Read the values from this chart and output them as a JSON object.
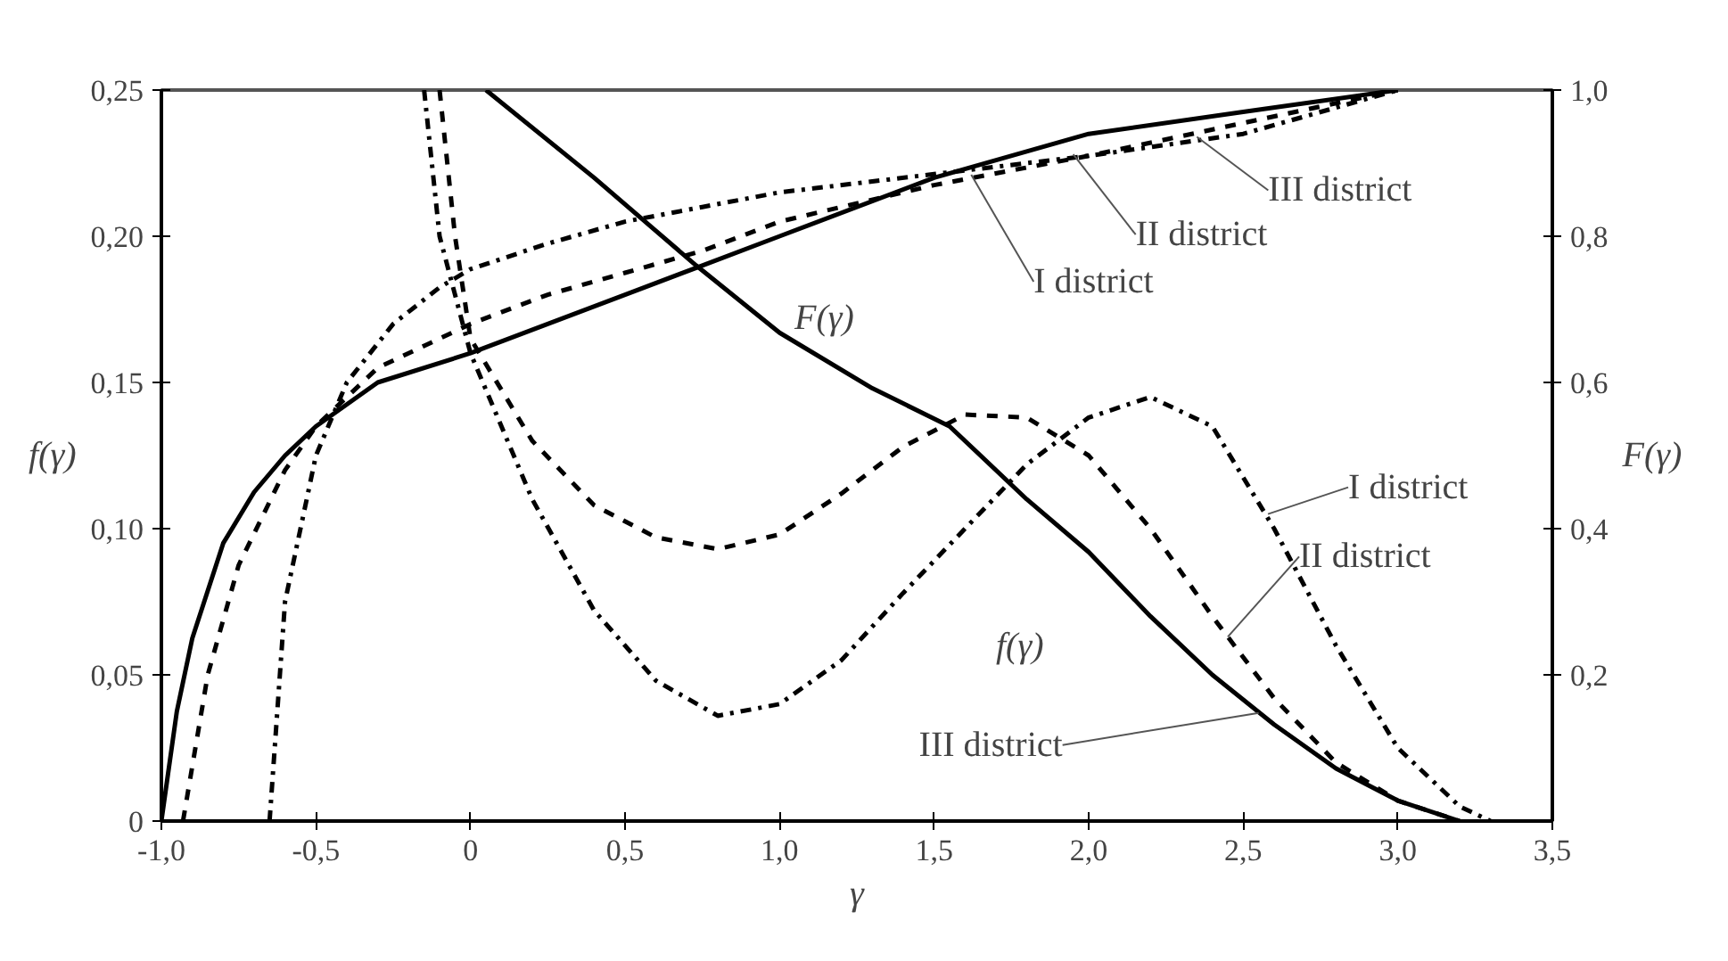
{
  "chart_data": {
    "type": "line",
    "xlabel": "γ",
    "ylabel": "f(γ)",
    "y2label": "F(γ)",
    "xlim": [
      -1.0,
      3.5
    ],
    "xticks": [
      {
        "value": -1.0,
        "label": "-1,0"
      },
      {
        "value": -0.5,
        "label": "-0,5"
      },
      0,
      {
        "value": 0.5,
        "label": "0,5"
      },
      {
        "value": 1.0,
        "label": "1,0"
      },
      {
        "value": 1.5,
        "label": "1,5"
      },
      {
        "value": 2.0,
        "label": "2,0"
      },
      {
        "value": 2.5,
        "label": "2,5"
      },
      {
        "value": 3.0,
        "label": "3,0"
      },
      {
        "value": 3.5,
        "label": "3,5"
      }
    ],
    "ylim": [
      0,
      0.25
    ],
    "yticks": [
      0,
      {
        "value": 0.05,
        "label": "0,05"
      },
      {
        "value": 0.1,
        "label": "0,10"
      },
      {
        "value": 0.15,
        "label": "0,15"
      },
      {
        "value": 0.2,
        "label": "0,20"
      },
      {
        "value": 0.25,
        "label": "0,25"
      }
    ],
    "y2lim": [
      0,
      1.0
    ],
    "y2ticks": [
      {
        "value": 0.2,
        "label": "0,2"
      },
      {
        "value": 0.4,
        "label": "0,4"
      },
      {
        "value": 0.6,
        "label": "0,6"
      },
      {
        "value": 0.8,
        "label": "0,8"
      },
      {
        "value": 1.0,
        "label": "1,0"
      }
    ],
    "grid": false,
    "marker": "none",
    "series": [
      {
        "color": "#000000",
        "line_style": "dashdot",
        "x": [
          -0.15,
          -0.1,
          0,
          0.2,
          0.4,
          0.6,
          0.8,
          1.0,
          1.2,
          1.4,
          1.6,
          1.8,
          2.0,
          2.2,
          2.4,
          2.6,
          2.8,
          3.0,
          3.2,
          3.3
        ],
        "values": [
          0.25,
          0.2,
          0.16,
          0.11,
          0.072,
          0.048,
          0.036,
          0.04,
          0.055,
          0.078,
          0.1,
          0.122,
          0.138,
          0.145,
          0.135,
          0.1,
          0.06,
          0.025,
          0.005,
          0
        ]
      },
      {
        "color": "#000000",
        "line_style": "dashed",
        "x": [
          -0.1,
          -0.05,
          0,
          0.2,
          0.4,
          0.6,
          0.8,
          1.0,
          1.2,
          1.4,
          1.6,
          1.8,
          2.0,
          2.2,
          2.4,
          2.6,
          2.8,
          3.0,
          3.2
        ],
        "values": [
          0.25,
          0.2,
          0.165,
          0.13,
          0.108,
          0.097,
          0.093,
          0.098,
          0.112,
          0.128,
          0.139,
          0.138,
          0.125,
          0.1,
          0.07,
          0.042,
          0.02,
          0.007,
          0
        ]
      },
      {
        "color": "#000000",
        "line_style": "solid",
        "x": [
          0.05,
          0.4,
          0.73,
          1.0,
          1.3,
          1.55,
          1.8,
          2.0,
          2.2,
          2.4,
          2.6,
          2.8,
          3.0,
          3.2
        ],
        "values": [
          0.25,
          0.22,
          0.19,
          0.167,
          0.148,
          0.135,
          0.11,
          0.092,
          0.07,
          0.05,
          0.033,
          0.018,
          0.007,
          0
        ]
      },
      {
        "color": "#000000",
        "line_style": "dashdot",
        "axis": "y2",
        "x": [
          -0.65,
          -0.6,
          -0.5,
          -0.4,
          -0.25,
          -0.1,
          0,
          0.25,
          0.5,
          0.75,
          1.0,
          1.5,
          2.0,
          2.5,
          3.0
        ],
        "values": [
          0,
          0.3,
          0.5,
          0.6,
          0.68,
          0.73,
          0.755,
          0.79,
          0.82,
          0.84,
          0.86,
          0.885,
          0.91,
          0.94,
          1.0
        ]
      },
      {
        "color": "#000000",
        "line_style": "dashed",
        "axis": "y2",
        "x": [
          -0.93,
          -0.85,
          -0.75,
          -0.6,
          -0.5,
          -0.3,
          0,
          0.25,
          0.5,
          0.75,
          1.0,
          1.5,
          2.0,
          2.5,
          3.0
        ],
        "values": [
          0,
          0.2,
          0.35,
          0.48,
          0.54,
          0.62,
          0.68,
          0.72,
          0.75,
          0.78,
          0.82,
          0.87,
          0.91,
          0.955,
          1.0
        ]
      },
      {
        "color": "#000000",
        "line_style": "solid",
        "axis": "y2",
        "x": [
          -1.0,
          -0.95,
          -0.9,
          -0.8,
          -0.7,
          -0.6,
          -0.5,
          -0.3,
          0,
          0.25,
          0.5,
          0.75,
          1.0,
          1.5,
          2.0,
          2.5,
          3.0
        ],
        "values": [
          0,
          0.15,
          0.25,
          0.38,
          0.45,
          0.5,
          0.54,
          0.6,
          0.64,
          0.68,
          0.72,
          0.76,
          0.8,
          0.88,
          0.94,
          0.97,
          1.0
        ]
      }
    ],
    "annotations": [
      {
        "text": "III district",
        "x": 2.35,
        "y": 0.234
      },
      {
        "text": "II district",
        "x": 1.95,
        "y": 0.228
      },
      {
        "text": "I district",
        "x": 1.62,
        "y": 0.221
      },
      "F(γ)",
      {
        "text": "I district",
        "x": 2.58,
        "y": 0.105
      },
      {
        "text": "II district",
        "x": 2.45,
        "y": 0.063
      },
      "f(γ)",
      {
        "text": "III district",
        "x": 2.55,
        "y": 0.037
      }
    ]
  }
}
